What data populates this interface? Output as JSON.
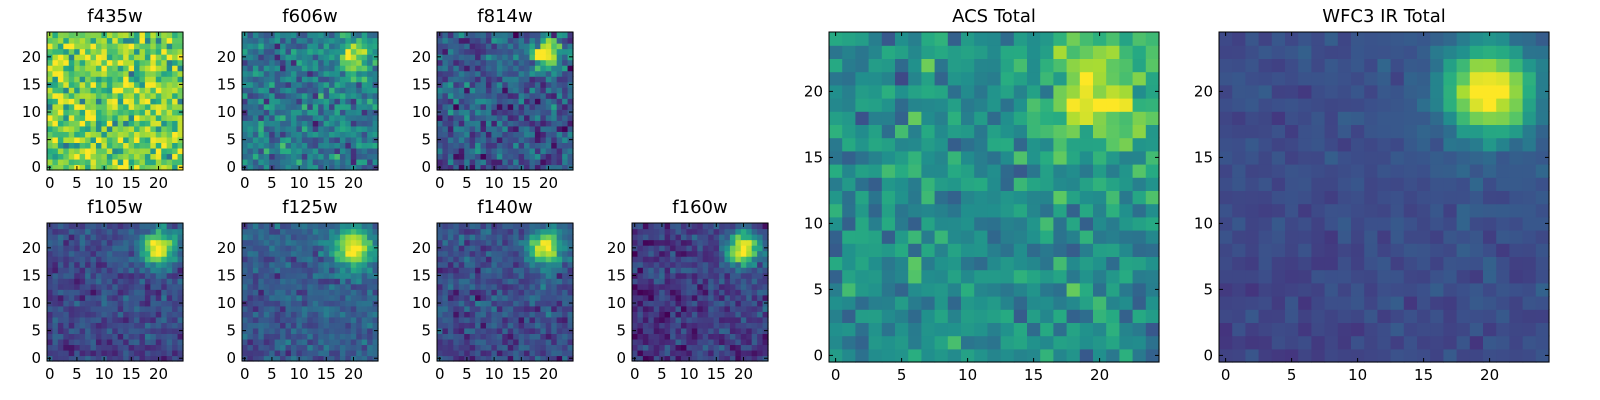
{
  "chart_data": [
    {
      "type": "heatmap",
      "title": "f435w",
      "colormap": "viridis",
      "grid": false,
      "x_range": [
        -0.5,
        24.5
      ],
      "y_range": [
        -0.5,
        24.5
      ],
      "x_ticks": [
        "0",
        "5",
        "10",
        "15",
        "20"
      ],
      "y_ticks": [
        "0",
        "5",
        "10",
        "15",
        "20"
      ],
      "cells": [
        25,
        25
      ],
      "source": {
        "x": 20,
        "y": 20,
        "peak": 0.0,
        "sigma": 2.6
      },
      "background_level": 0.78,
      "noise_level": 0.16,
      "slope": 0.0
    },
    {
      "type": "heatmap",
      "title": "f606w",
      "colormap": "viridis",
      "grid": false,
      "x_range": [
        -0.5,
        24.5
      ],
      "y_range": [
        -0.5,
        24.5
      ],
      "x_ticks": [
        "0",
        "5",
        "10",
        "15",
        "20"
      ],
      "y_ticks": [
        "0",
        "5",
        "10",
        "15",
        "20"
      ],
      "cells": [
        25,
        25
      ],
      "source": {
        "x": 20,
        "y": 20,
        "peak": 0.6,
        "sigma": 2.0
      },
      "background_level": 0.4,
      "noise_level": 0.12,
      "slope": 0.0
    },
    {
      "type": "heatmap",
      "title": "f814w",
      "colormap": "viridis",
      "grid": false,
      "x_range": [
        -0.5,
        24.5
      ],
      "y_range": [
        -0.5,
        24.5
      ],
      "x_ticks": [
        "0",
        "5",
        "10",
        "15",
        "20"
      ],
      "y_ticks": [
        "0",
        "5",
        "10",
        "15",
        "20"
      ],
      "cells": [
        25,
        25
      ],
      "source": {
        "x": 19.5,
        "y": 20.5,
        "peak": 0.72,
        "sigma": 1.9
      },
      "background_level": 0.28,
      "noise_level": 0.12,
      "slope": 0.0
    },
    {
      "type": "heatmap",
      "title": "f105w",
      "colormap": "viridis",
      "grid": false,
      "x_range": [
        -0.5,
        24.5
      ],
      "y_range": [
        -0.5,
        24.5
      ],
      "x_ticks": [
        "0",
        "5",
        "10",
        "15",
        "20"
      ],
      "y_ticks": [
        "0",
        "5",
        "10",
        "15",
        "20"
      ],
      "cells": [
        25,
        25
      ],
      "source": {
        "x": 20,
        "y": 20,
        "peak": 0.8,
        "sigma": 2.2
      },
      "background_level": 0.2,
      "noise_level": 0.07,
      "slope": 0.06
    },
    {
      "type": "heatmap",
      "title": "f125w",
      "colormap": "viridis",
      "grid": false,
      "x_range": [
        -0.5,
        24.5
      ],
      "y_range": [
        -0.5,
        24.5
      ],
      "x_ticks": [
        "0",
        "5",
        "10",
        "15",
        "20"
      ],
      "y_ticks": [
        "0",
        "5",
        "10",
        "15",
        "20"
      ],
      "cells": [
        25,
        25
      ],
      "source": {
        "x": 20,
        "y": 20,
        "peak": 0.75,
        "sigma": 2.3
      },
      "background_level": 0.27,
      "noise_level": 0.07,
      "slope": 0.06
    },
    {
      "type": "heatmap",
      "title": "f140w",
      "colormap": "viridis",
      "grid": false,
      "x_range": [
        -0.5,
        24.5
      ],
      "y_range": [
        -0.5,
        24.5
      ],
      "x_ticks": [
        "0",
        "5",
        "10",
        "15",
        "20"
      ],
      "y_ticks": [
        "0",
        "5",
        "10",
        "15",
        "20"
      ],
      "cells": [
        25,
        25
      ],
      "source": {
        "x": 19.5,
        "y": 20,
        "peak": 0.78,
        "sigma": 2.1
      },
      "background_level": 0.22,
      "noise_level": 0.08,
      "slope": 0.05
    },
    {
      "type": "heatmap",
      "title": "f160w",
      "colormap": "viridis",
      "grid": false,
      "x_range": [
        -0.5,
        24.5
      ],
      "y_range": [
        -0.5,
        24.5
      ],
      "x_ticks": [
        "0",
        "5",
        "10",
        "15",
        "20"
      ],
      "y_ticks": [
        "0",
        "5",
        "10",
        "15",
        "20"
      ],
      "cells": [
        25,
        25
      ],
      "source": {
        "x": 20,
        "y": 20,
        "peak": 0.85,
        "sigma": 2.1
      },
      "background_level": 0.16,
      "noise_level": 0.08,
      "slope": 0.05
    },
    {
      "type": "heatmap",
      "title": "ACS Total",
      "colormap": "viridis",
      "grid": false,
      "x_range": [
        -0.5,
        24.5
      ],
      "y_range": [
        -0.5,
        24.5
      ],
      "x_ticks": [
        "0",
        "5",
        "10",
        "15",
        "20"
      ],
      "y_ticks": [
        "0",
        "5",
        "10",
        "15",
        "20"
      ],
      "cells": [
        25,
        25
      ],
      "source": {
        "x": 20,
        "y": 20,
        "peak": 0.45,
        "sigma": 2.8
      },
      "background_level": 0.5,
      "noise_level": 0.1,
      "slope": 0.0
    },
    {
      "type": "heatmap",
      "title": "WFC3 IR Total",
      "colormap": "viridis",
      "grid": false,
      "x_range": [
        -0.5,
        24.5
      ],
      "y_range": [
        -0.5,
        24.5
      ],
      "x_ticks": [
        "0",
        "5",
        "10",
        "15",
        "20"
      ],
      "y_ticks": [
        "0",
        "5",
        "10",
        "15",
        "20"
      ],
      "cells": [
        25,
        25
      ],
      "source": {
        "x": 20,
        "y": 20,
        "peak": 0.8,
        "sigma": 2.4
      },
      "background_level": 0.2,
      "noise_level": 0.03,
      "slope": 0.08
    }
  ]
}
